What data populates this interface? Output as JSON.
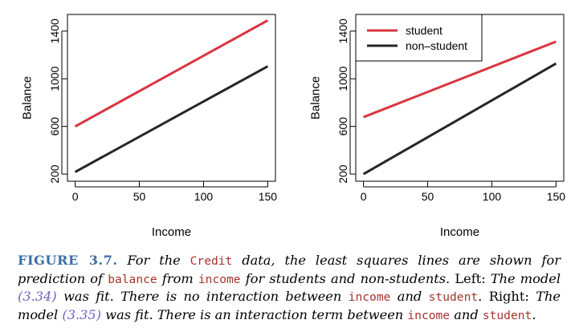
{
  "colors": {
    "student": "#d9353f",
    "non_student": "#262626",
    "caption_label": "#3d6ea6",
    "code": "#a5342b",
    "ref": "#6f63c4"
  },
  "chart_data": [
    {
      "type": "line",
      "panel": "left",
      "title": "",
      "xlabel": "Income",
      "ylabel": "Balance",
      "xlim": [
        -6,
        156
      ],
      "ylim": [
        140,
        1540
      ],
      "x_ticks": [
        0,
        50,
        100,
        150
      ],
      "y_ticks": [
        200,
        600,
        1000,
        1400
      ],
      "grid": false,
      "legend": "none",
      "series": [
        {
          "key": "student",
          "color": "#d9353f",
          "x": [
            0,
            150
          ],
          "y": [
            600,
            1490
          ]
        },
        {
          "key": "non_student",
          "color": "#262626",
          "x": [
            0,
            150
          ],
          "y": [
            218,
            1105
          ]
        }
      ]
    },
    {
      "type": "line",
      "panel": "right",
      "title": "",
      "xlabel": "Income",
      "ylabel": "Balance",
      "xlim": [
        -6,
        156
      ],
      "ylim": [
        140,
        1540
      ],
      "x_ticks": [
        0,
        50,
        100,
        150
      ],
      "y_ticks": [
        200,
        600,
        1000,
        1400
      ],
      "grid": false,
      "legend": "top-left",
      "series": [
        {
          "key": "student",
          "name": "student",
          "color": "#d9353f",
          "x": [
            0,
            150
          ],
          "y": [
            678,
            1312
          ]
        },
        {
          "key": "non_student",
          "name": "non–student",
          "color": "#262626",
          "x": [
            0,
            150
          ],
          "y": [
            200,
            1128
          ]
        }
      ]
    }
  ],
  "caption": {
    "label": "FIGURE 3.7.",
    "t1": " For the ",
    "c1": "Credit",
    "t2": " data, the least squares lines are shown for prediction of ",
    "c2": "balance",
    "t3": " from ",
    "c3": "income",
    "t4": " for students and non-students. ",
    "left_word": "Left:",
    "t5": " The model ",
    "ref1": "(3.34)",
    "t6": " was fit. There is no interaction between ",
    "c4": "income",
    "t7": " and ",
    "c5": "student",
    "t8": ". ",
    "right_word": "Right:",
    "t9": " The model ",
    "ref2": "(3.35)",
    "t10": " was fit. There is an interaction term between ",
    "c6": "income",
    "t11": " and ",
    "c7": "student",
    "t12": "."
  }
}
